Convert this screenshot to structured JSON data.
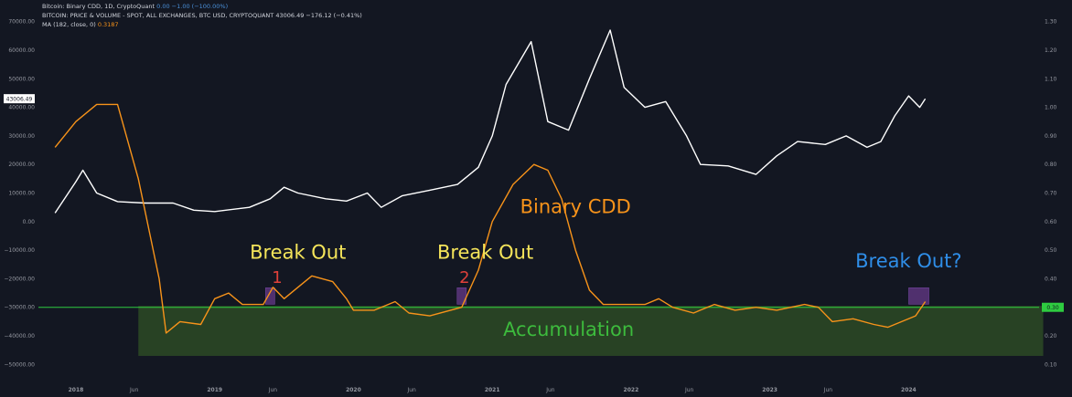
{
  "header": {
    "line1_label": "Bitcoin: Binary CDD, 1D, CryptoQuant",
    "line1_values": "0.00  −1.00 (−100.00%)",
    "line2_label": "BITCOIN: PRICE & VOLUME - SPOT, ALL EXCHANGES, BTC USD, CRYPTOQUANT",
    "line2_values": "43006.49  −176.12 (−0.41%)",
    "line3_label": "MA (182, close, 0)",
    "line3_values": "0.3187"
  },
  "colors": {
    "background": "#131722",
    "price_line": "#ffffff",
    "cdd_line": "#f7931a",
    "threshold_line": "#2ecc40",
    "accumulation_zone": "#2d4a24",
    "breakout_marker": "#6a3b8f",
    "annotation_yellow": "#f5e55a",
    "annotation_green": "#3dbb3d",
    "annotation_blue": "#2f8ee8",
    "annotation_red": "#e0413a"
  },
  "chart_data": {
    "type": "line",
    "x_ticks": [
      "2018",
      "Jun",
      "2019",
      "Jun",
      "2020",
      "Jun",
      "2021",
      "Jun",
      "2022",
      "Jun",
      "2023",
      "Jun",
      "2024"
    ],
    "left_axis": {
      "range": [
        -55000,
        75000
      ],
      "ticks": [
        "70000.00",
        "60000.00",
        "50000.00",
        "40000.00",
        "30000.00",
        "20000.00",
        "10000.00",
        "0.00",
        "−10000.00",
        "−20000.00",
        "−30000.00",
        "−40000.00",
        "−50000.00"
      ],
      "tick_values": [
        70000,
        60000,
        50000,
        40000,
        30000,
        20000,
        10000,
        0,
        -10000,
        -20000,
        -30000,
        -40000,
        -50000
      ],
      "current_price_label": "43006.49",
      "current_price": 43006.49
    },
    "right_axis": {
      "range": [
        0.05,
        1.35
      ],
      "ticks": [
        "1.30",
        "1.20",
        "1.10",
        "1.00",
        "0.90",
        "0.80",
        "0.70",
        "0.60",
        "0.50",
        "0.40",
        "0.30",
        "0.20",
        "0.10"
      ],
      "tick_values": [
        1.3,
        1.2,
        1.1,
        1.0,
        0.9,
        0.8,
        0.7,
        0.6,
        0.5,
        0.4,
        0.3,
        0.2,
        0.1
      ],
      "threshold_label": "0.30",
      "threshold": 0.3
    },
    "series": [
      {
        "id": "btc_price",
        "axis": "left",
        "points": [
          [
            2017.85,
            3000
          ],
          [
            2018.0,
            14000
          ],
          [
            2018.05,
            18000
          ],
          [
            2018.15,
            10000
          ],
          [
            2018.3,
            7000
          ],
          [
            2018.5,
            6500
          ],
          [
            2018.7,
            6500
          ],
          [
            2018.85,
            4000
          ],
          [
            2019.0,
            3500
          ],
          [
            2019.25,
            5000
          ],
          [
            2019.4,
            8000
          ],
          [
            2019.5,
            12000
          ],
          [
            2019.6,
            10000
          ],
          [
            2019.8,
            8000
          ],
          [
            2019.95,
            7200
          ],
          [
            2020.1,
            10000
          ],
          [
            2020.2,
            5000
          ],
          [
            2020.35,
            9000
          ],
          [
            2020.55,
            11000
          ],
          [
            2020.75,
            13000
          ],
          [
            2020.9,
            19000
          ],
          [
            2021.0,
            30000
          ],
          [
            2021.1,
            48000
          ],
          [
            2021.28,
            63000
          ],
          [
            2021.4,
            35000
          ],
          [
            2021.55,
            32000
          ],
          [
            2021.7,
            50000
          ],
          [
            2021.85,
            67000
          ],
          [
            2021.95,
            47000
          ],
          [
            2022.1,
            40000
          ],
          [
            2022.25,
            42000
          ],
          [
            2022.4,
            30000
          ],
          [
            2022.5,
            20000
          ],
          [
            2022.7,
            19500
          ],
          [
            2022.9,
            16500
          ],
          [
            2023.05,
            23000
          ],
          [
            2023.2,
            28000
          ],
          [
            2023.4,
            27000
          ],
          [
            2023.55,
            30000
          ],
          [
            2023.7,
            26000
          ],
          [
            2023.8,
            28000
          ],
          [
            2023.9,
            37000
          ],
          [
            2024.0,
            44000
          ],
          [
            2024.08,
            40000
          ],
          [
            2024.12,
            43006.49
          ]
        ]
      },
      {
        "id": "binary_cdd_ma",
        "name": "Binary CDD",
        "axis": "right",
        "points": [
          [
            2017.85,
            0.86
          ],
          [
            2018.0,
            0.95
          ],
          [
            2018.15,
            1.01
          ],
          [
            2018.3,
            1.01
          ],
          [
            2018.45,
            0.75
          ],
          [
            2018.6,
            0.4
          ],
          [
            2018.65,
            0.21
          ],
          [
            2018.75,
            0.25
          ],
          [
            2018.9,
            0.24
          ],
          [
            2019.0,
            0.33
          ],
          [
            2019.1,
            0.35
          ],
          [
            2019.2,
            0.31
          ],
          [
            2019.35,
            0.31
          ],
          [
            2019.42,
            0.37
          ],
          [
            2019.5,
            0.33
          ],
          [
            2019.6,
            0.37
          ],
          [
            2019.7,
            0.41
          ],
          [
            2019.85,
            0.39
          ],
          [
            2019.95,
            0.33
          ],
          [
            2020.0,
            0.29
          ],
          [
            2020.15,
            0.29
          ],
          [
            2020.3,
            0.32
          ],
          [
            2020.4,
            0.28
          ],
          [
            2020.55,
            0.27
          ],
          [
            2020.7,
            0.29
          ],
          [
            2020.78,
            0.3
          ],
          [
            2020.9,
            0.43
          ],
          [
            2021.0,
            0.6
          ],
          [
            2021.15,
            0.73
          ],
          [
            2021.3,
            0.8
          ],
          [
            2021.4,
            0.78
          ],
          [
            2021.5,
            0.68
          ],
          [
            2021.6,
            0.5
          ],
          [
            2021.7,
            0.36
          ],
          [
            2021.8,
            0.31
          ],
          [
            2021.95,
            0.31
          ],
          [
            2022.1,
            0.31
          ],
          [
            2022.2,
            0.33
          ],
          [
            2022.3,
            0.3
          ],
          [
            2022.45,
            0.28
          ],
          [
            2022.6,
            0.31
          ],
          [
            2022.75,
            0.29
          ],
          [
            2022.9,
            0.3
          ],
          [
            2023.05,
            0.29
          ],
          [
            2023.25,
            0.31
          ],
          [
            2023.35,
            0.3
          ],
          [
            2023.45,
            0.25
          ],
          [
            2023.6,
            0.26
          ],
          [
            2023.75,
            0.24
          ],
          [
            2023.85,
            0.23
          ],
          [
            2023.95,
            0.25
          ],
          [
            2024.05,
            0.27
          ],
          [
            2024.12,
            0.32
          ]
        ]
      }
    ],
    "zones": [
      {
        "label": "Accumulation",
        "x_start": 2018.45,
        "x_end": 2024.97,
        "y_low": 0.13,
        "y_high": 0.305
      }
    ],
    "annotations": [
      {
        "text": "Binary CDD",
        "x": 2021.6,
        "y": 0.63,
        "color": "annotation_orange"
      },
      {
        "text": "Break Out",
        "x": 2019.6,
        "y": 0.47,
        "color": "annotation_yellow"
      },
      {
        "text": "1",
        "x": 2019.45,
        "y": 0.385,
        "color": "annotation_red"
      },
      {
        "text": "Break Out",
        "x": 2020.95,
        "y": 0.47,
        "color": "annotation_yellow"
      },
      {
        "text": "2",
        "x": 2020.8,
        "y": 0.385,
        "color": "annotation_red"
      },
      {
        "text": "Break Out?",
        "x": 2024.0,
        "y": 0.44,
        "color": "annotation_blue"
      },
      {
        "text": "Accumulation",
        "x": 2021.55,
        "y": 0.2,
        "color": "annotation_green"
      }
    ],
    "breakout_markers": [
      {
        "x": 2019.4,
        "y": 0.33
      },
      {
        "x": 2020.78,
        "y": 0.33
      },
      {
        "x": 2024.08,
        "y": 0.33
      }
    ]
  }
}
